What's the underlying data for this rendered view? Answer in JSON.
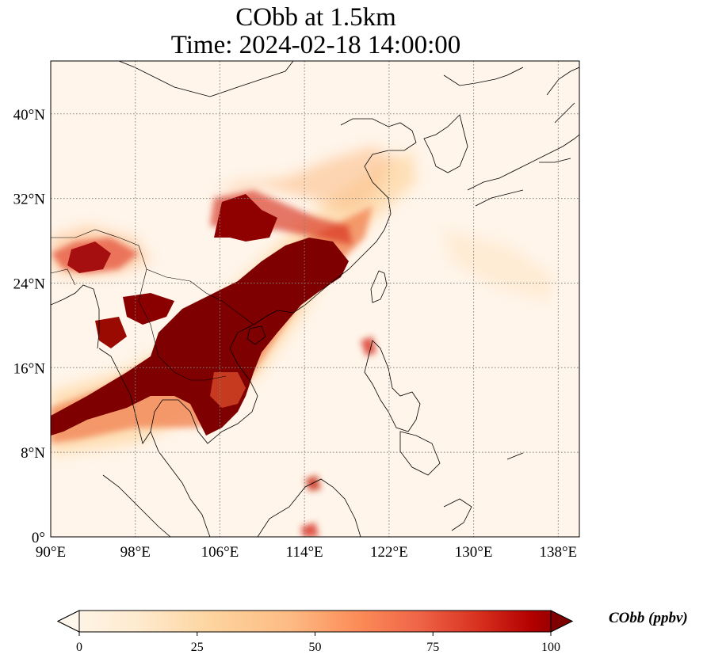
{
  "map": {
    "title": "CObb at 1.5km",
    "subtitle": "Time: 2024-02-18 14:00:00",
    "variable": "CObb",
    "height_km": 1.5,
    "time": "2024-02-18 14:00:00",
    "extent": {
      "lon": [
        90,
        140
      ],
      "lat": [
        0,
        45
      ]
    },
    "lon_ticks": [
      "90°E",
      "98°E",
      "106°E",
      "114°E",
      "122°E",
      "130°E",
      "138°E"
    ],
    "lat_ticks": [
      "0°",
      "8°N",
      "16°N",
      "24°N",
      "32°N",
      "40°N"
    ],
    "gridlines": true,
    "colormap": "OrRd",
    "colors": [
      "#fff7ec",
      "#fee8c8",
      "#fdd49e",
      "#fdbb84",
      "#fc8d59",
      "#ef6548",
      "#d7301f",
      "#b30000",
      "#7f0000"
    ]
  },
  "colorbar": {
    "label": "CObb (ppbv)",
    "ticks": [
      "0",
      "25",
      "50",
      "75",
      "100"
    ],
    "range": [
      0,
      100
    ],
    "extend": "both"
  }
}
